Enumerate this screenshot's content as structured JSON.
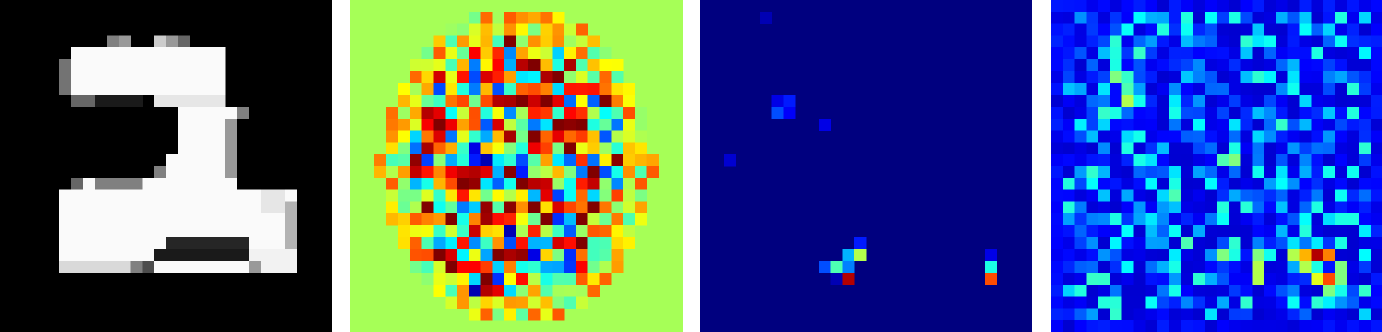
{
  "figure": {
    "panel_count": 4,
    "grid_size": 28,
    "panels": [
      {
        "name": "input-digit-image",
        "colormap": "gray",
        "background": "#000000",
        "seed": 1
      },
      {
        "name": "signed-attribution-map",
        "colormap": "jet",
        "background": "#a6ff57",
        "seed": 2
      },
      {
        "name": "sparse-attribution-map",
        "colormap": "jet",
        "background": "#00007f",
        "seed": 3
      },
      {
        "name": "noisy-attribution-map",
        "colormap": "jet",
        "background": "#00008c",
        "seed": 4
      }
    ]
  }
}
